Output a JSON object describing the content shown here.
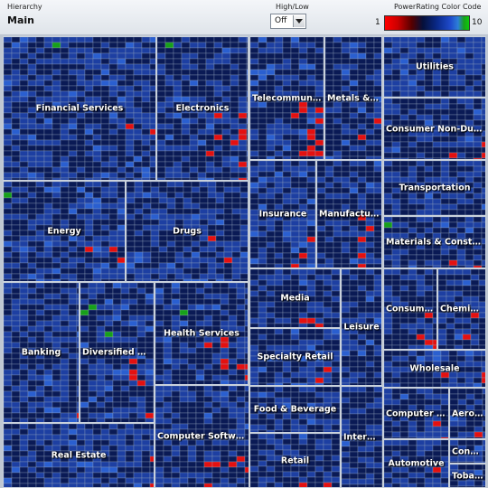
{
  "header": {
    "hierarchy_label": "Hierarchy",
    "hierarchy_value": "Main",
    "highlow_label": "High/Low",
    "highlow_value": "Off",
    "colorcode_label": "PowerRating Color Code",
    "scale_min": "1",
    "scale_max": "10"
  },
  "colors": {
    "red": "#e41010",
    "dark": "#0a1a55",
    "blue": "#1d3fa2",
    "lightblue": "#2a5fd0",
    "green": "#17a01a",
    "border": "#c9d1dc"
  },
  "sectors": [
    {
      "key": "financial-services",
      "label": "Financial Services",
      "seed": 1,
      "mix": [
        0.03,
        0.45,
        0.47,
        0.02,
        0.03
      ]
    },
    {
      "key": "electronics",
      "label": "Electronics",
      "seed": 2,
      "mix": [
        0.08,
        0.55,
        0.32,
        0.03,
        0.02
      ]
    },
    {
      "key": "telecommunications",
      "label": "Telecommunicat...",
      "seed": 3,
      "mix": [
        0.12,
        0.5,
        0.3,
        0.05,
        0.03
      ]
    },
    {
      "key": "metals-mining",
      "label": "Metals & Mi...",
      "seed": 4,
      "mix": [
        0.15,
        0.5,
        0.28,
        0.03,
        0.04
      ]
    },
    {
      "key": "utilities",
      "label": "Utilities",
      "seed": 5,
      "mix": [
        0.02,
        0.35,
        0.55,
        0.08,
        0.0
      ]
    },
    {
      "key": "consumer-non-durables",
      "label": "Consumer Non-Durables",
      "seed": 6,
      "mix": [
        0.12,
        0.45,
        0.4,
        0.02,
        0.01
      ]
    },
    {
      "key": "energy",
      "label": "Energy",
      "seed": 7,
      "mix": [
        0.06,
        0.4,
        0.46,
        0.05,
        0.03
      ]
    },
    {
      "key": "drugs",
      "label": "Drugs",
      "seed": 8,
      "mix": [
        0.12,
        0.45,
        0.36,
        0.04,
        0.03
      ]
    },
    {
      "key": "insurance",
      "label": "Insurance",
      "seed": 9,
      "mix": [
        0.04,
        0.4,
        0.5,
        0.06,
        0.0
      ]
    },
    {
      "key": "manufacturing",
      "label": "Manufacturing",
      "seed": 10,
      "mix": [
        0.08,
        0.55,
        0.35,
        0.02,
        0.0
      ]
    },
    {
      "key": "transportation",
      "label": "Transportation",
      "seed": 11,
      "mix": [
        0.08,
        0.45,
        0.45,
        0.02,
        0.0
      ]
    },
    {
      "key": "materials-construction",
      "label": "Materials & Constructio...",
      "seed": 12,
      "mix": [
        0.1,
        0.5,
        0.35,
        0.02,
        0.03
      ]
    },
    {
      "key": "banking",
      "label": "Banking",
      "seed": 13,
      "mix": [
        0.03,
        0.45,
        0.5,
        0.02,
        0.0
      ]
    },
    {
      "key": "diversified-services",
      "label": "Diversified Servi...",
      "seed": 14,
      "mix": [
        0.08,
        0.5,
        0.35,
        0.03,
        0.04
      ]
    },
    {
      "key": "health-services",
      "label": "Health Services",
      "seed": 15,
      "mix": [
        0.12,
        0.5,
        0.34,
        0.02,
        0.02
      ]
    },
    {
      "key": "media",
      "label": "Media",
      "seed": 16,
      "mix": [
        0.06,
        0.5,
        0.42,
        0.02,
        0.0
      ]
    },
    {
      "key": "leisure",
      "label": "Leisure",
      "seed": 17,
      "mix": [
        0.04,
        0.55,
        0.38,
        0.02,
        0.01
      ]
    },
    {
      "key": "consumer-durables",
      "label": "Consumer ...",
      "seed": 18,
      "mix": [
        0.08,
        0.55,
        0.35,
        0.02,
        0.0
      ]
    },
    {
      "key": "chemicals",
      "label": "Chemicals",
      "seed": 19,
      "mix": [
        0.1,
        0.45,
        0.43,
        0.02,
        0.0
      ]
    },
    {
      "key": "specialty-retail",
      "label": "Specialty Retail",
      "seed": 20,
      "mix": [
        0.08,
        0.45,
        0.4,
        0.02,
        0.05
      ]
    },
    {
      "key": "wholesale",
      "label": "Wholesale",
      "seed": 21,
      "mix": [
        0.04,
        0.4,
        0.5,
        0.06,
        0.0
      ]
    },
    {
      "key": "food-beverage",
      "label": "Food & Beverage",
      "seed": 22,
      "mix": [
        0.06,
        0.5,
        0.42,
        0.02,
        0.0
      ]
    },
    {
      "key": "computer-software",
      "label": "Computer Software & ...",
      "seed": 23,
      "mix": [
        0.08,
        0.5,
        0.38,
        0.02,
        0.02
      ]
    },
    {
      "key": "internet",
      "label": "Internet",
      "seed": 24,
      "mix": [
        0.03,
        0.55,
        0.4,
        0.02,
        0.0
      ]
    },
    {
      "key": "computer-hardware",
      "label": "Computer Har...",
      "seed": 25,
      "mix": [
        0.1,
        0.45,
        0.43,
        0.02,
        0.0
      ]
    },
    {
      "key": "aerospace",
      "label": "Aerosp...",
      "seed": 26,
      "mix": [
        0.1,
        0.45,
        0.43,
        0.02,
        0.0
      ]
    },
    {
      "key": "real-estate",
      "label": "Real Estate",
      "seed": 27,
      "mix": [
        0.04,
        0.4,
        0.52,
        0.04,
        0.0
      ]
    },
    {
      "key": "retail",
      "label": "Retail",
      "seed": 28,
      "mix": [
        0.1,
        0.5,
        0.38,
        0.02,
        0.0
      ]
    },
    {
      "key": "automotive",
      "label": "Automotive",
      "seed": 29,
      "mix": [
        0.06,
        0.5,
        0.42,
        0.02,
        0.0
      ]
    },
    {
      "key": "conglomerates",
      "label": "Conglo...",
      "seed": 30,
      "mix": [
        0.02,
        0.45,
        0.5,
        0.03,
        0.0
      ]
    },
    {
      "key": "tobacco",
      "label": "Tobacc...",
      "seed": 31,
      "mix": [
        0.02,
        0.55,
        0.4,
        0.03,
        0.0
      ]
    }
  ]
}
